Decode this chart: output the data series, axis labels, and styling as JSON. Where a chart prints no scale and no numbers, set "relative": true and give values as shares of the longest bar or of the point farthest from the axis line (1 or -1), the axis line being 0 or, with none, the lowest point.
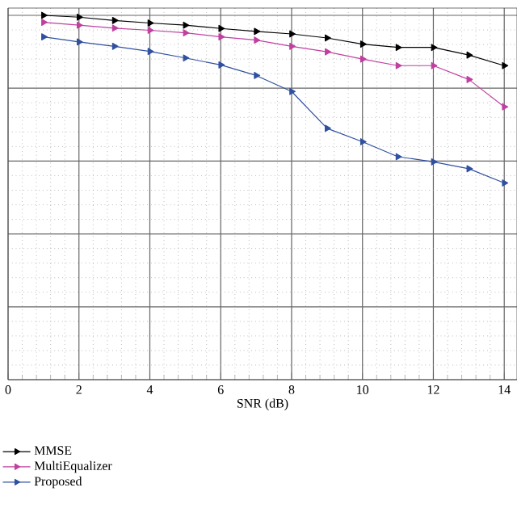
{
  "chart_data": {
    "type": "line",
    "xlabel": "SNR (dB)",
    "relative": true,
    "x": [
      1,
      2,
      3,
      4,
      5,
      6,
      7,
      8,
      9,
      10,
      11,
      12,
      13,
      14
    ],
    "xlim": [
      0,
      14.36
    ],
    "xticks": [
      0,
      2,
      4,
      6,
      8,
      10,
      12,
      14
    ],
    "grid": true,
    "legend": "bottom left",
    "marker": "triangle",
    "line_style": "solid",
    "series": [
      {
        "name": "MMSE",
        "color": "#000000",
        "values": [
          1.0,
          0.995,
          0.986,
          0.979,
          0.973,
          0.964,
          0.956,
          0.949,
          0.938,
          0.921,
          0.912,
          0.912,
          0.891,
          0.862
        ]
      },
      {
        "name": "MultiEqualizer",
        "color": "#c040a0",
        "values": [
          0.981,
          0.973,
          0.965,
          0.959,
          0.952,
          0.941,
          0.932,
          0.915,
          0.9,
          0.88,
          0.862,
          0.862,
          0.824,
          0.749
        ]
      },
      {
        "name": "Proposed",
        "color": "#3050a0",
        "values": [
          0.941,
          0.927,
          0.915,
          0.901,
          0.883,
          0.864,
          0.835,
          0.791,
          0.69,
          0.653,
          0.612,
          0.598,
          0.579,
          0.54
        ]
      }
    ]
  }
}
